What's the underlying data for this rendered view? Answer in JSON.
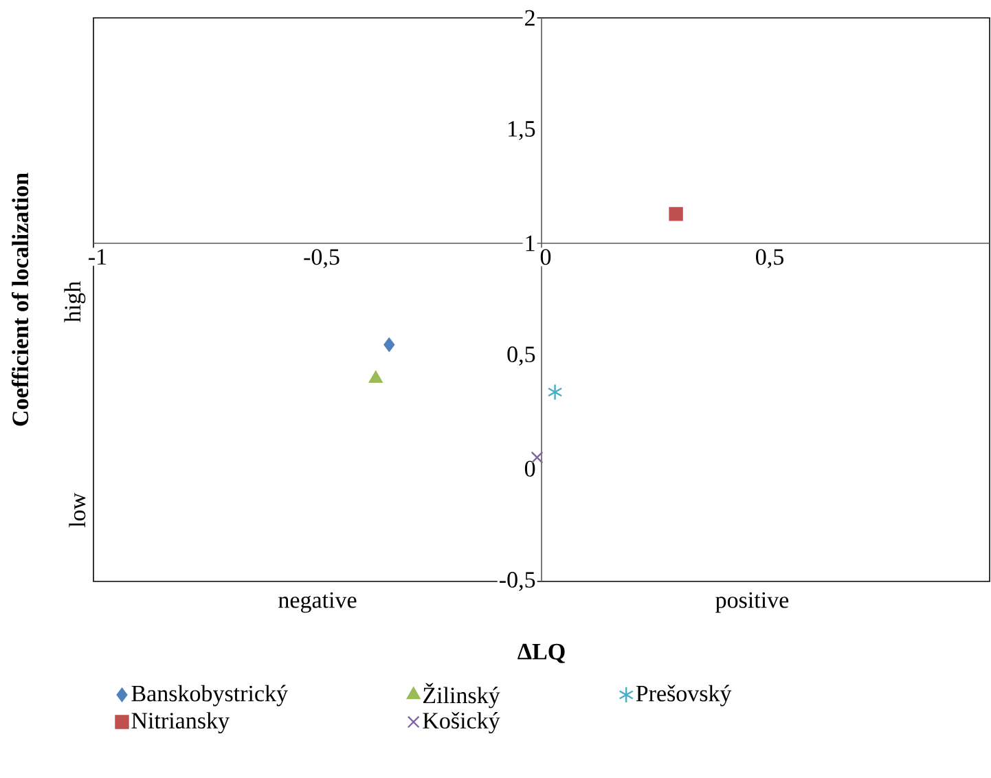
{
  "chart_data": {
    "type": "scatter",
    "xlabel": "ΔLQ",
    "ylabel": "Coefficient of localization",
    "annotations": [
      "high",
      "low",
      "negative",
      "positive"
    ],
    "xlim": [
      -1,
      1
    ],
    "ylim": [
      -0.5,
      2
    ],
    "xticks": [
      {
        "value": -1,
        "label": "-1"
      },
      {
        "value": -0.5,
        "label": "-0,5"
      },
      {
        "value": 0,
        "label": "0"
      },
      {
        "value": 0.5,
        "label": "0,5"
      }
    ],
    "yticks": [
      {
        "value": -0.5,
        "label": "-0,5"
      },
      {
        "value": 0,
        "label": "0"
      },
      {
        "value": 0.5,
        "label": "0,5"
      },
      {
        "value": 1,
        "label": "1"
      },
      {
        "value": 1.5,
        "label": "1,5"
      },
      {
        "value": 2,
        "label": "2"
      }
    ],
    "grid": false,
    "legend": "bottom",
    "series": [
      {
        "name": "Banskobystrický",
        "color": "#4f81bd",
        "marker": "diamond",
        "x": [
          -0.34
        ],
        "values": [
          0.55
        ]
      },
      {
        "name": "Žilinský",
        "color": "#9bbb59",
        "marker": "triangle",
        "x": [
          -0.37
        ],
        "values": [
          0.4
        ]
      },
      {
        "name": "Prešovský",
        "color": "#4bacc6",
        "x": [
          0.03
        ],
        "values": [
          0.34
        ]
      },
      {
        "name": "Nitriansky",
        "color": "#c0504d",
        "marker": "square",
        "x": [
          0.3
        ],
        "values": [
          1.13
        ]
      },
      {
        "name": "Košický",
        "color": "#8064a2",
        "marker": "cross",
        "x": [
          -0.01
        ],
        "values": [
          0.05
        ]
      }
    ]
  }
}
